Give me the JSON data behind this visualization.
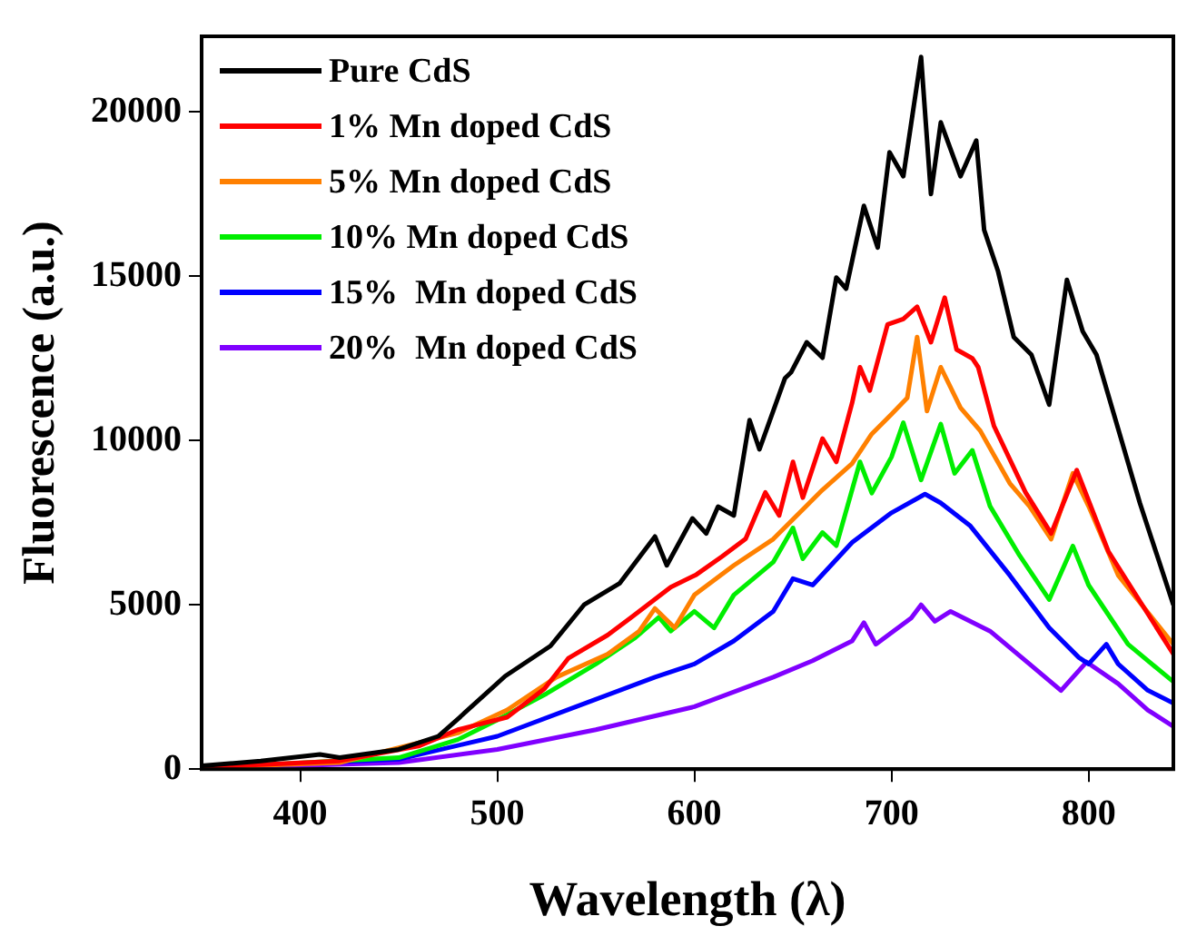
{
  "chart_data": {
    "type": "line",
    "xlabel": "Wavelength (λ)",
    "ylabel": "Fluorescence (a.u.)",
    "xlim": [
      350,
      843
    ],
    "ylim": [
      0,
      22300
    ],
    "xticks": [
      400,
      500,
      600,
      700,
      800
    ],
    "yticks": [
      0,
      5000,
      10000,
      15000,
      20000
    ],
    "grid": false,
    "legend": "top left",
    "marker": "none",
    "line_style": "solid",
    "series": [
      {
        "name": "Pure CdS",
        "color": "#000000",
        "x": [
          350,
          380,
          410,
          420,
          450,
          470,
          481,
          504,
          527,
          544,
          562,
          580,
          586,
          599,
          606,
          612,
          620,
          628,
          633,
          646,
          649,
          657,
          665,
          672,
          677,
          686,
          693,
          699,
          706,
          715,
          720,
          725,
          735,
          743,
          747,
          754,
          762,
          771,
          780,
          789,
          797,
          804,
          826,
          843
        ],
        "values": [
          100,
          250,
          450,
          350,
          600,
          1000,
          1580,
          2830,
          3750,
          5000,
          5650,
          7080,
          6200,
          7630,
          7170,
          7990,
          7720,
          10620,
          9730,
          11900,
          12070,
          12990,
          12520,
          14960,
          14620,
          17140,
          15870,
          18770,
          18040,
          21670,
          17500,
          19680,
          18040,
          19130,
          16410,
          15160,
          13150,
          12610,
          11090,
          14890,
          13320,
          12610,
          8100,
          5000
        ]
      },
      {
        "name": "1% Mn doped CdS",
        "color": "#ff0000",
        "x": [
          350,
          420,
          460,
          480,
          505,
          524,
          536,
          556,
          568,
          588,
          601,
          614,
          626,
          636,
          643,
          650,
          655,
          665,
          672,
          680,
          684,
          689,
          698,
          706,
          713,
          720,
          727,
          733,
          741,
          744,
          752,
          768,
          781,
          794,
          810,
          843
        ],
        "values": [
          50,
          250,
          700,
          1200,
          1580,
          2450,
          3370,
          4080,
          4620,
          5540,
          5920,
          6470,
          7010,
          8420,
          7720,
          9350,
          8260,
          10060,
          9350,
          11140,
          12230,
          11520,
          13530,
          13700,
          14070,
          12990,
          14350,
          12770,
          12500,
          12230,
          10440,
          8420,
          7170,
          9100,
          6630,
          3500
        ]
      },
      {
        "name": "5% Mn doped CdS",
        "color": "#ff8000",
        "x": [
          350,
          420,
          480,
          505,
          530,
          556,
          572,
          580,
          590,
          600,
          620,
          640,
          655,
          665,
          680,
          690,
          700,
          708,
          713,
          718,
          725,
          735,
          745,
          760,
          770,
          781,
          792,
          800,
          815,
          843
        ],
        "values": [
          50,
          200,
          1100,
          1800,
          2800,
          3500,
          4200,
          4890,
          4300,
          5300,
          6200,
          7000,
          7900,
          8500,
          9300,
          10200,
          10800,
          11300,
          13150,
          10900,
          12230,
          11000,
          10300,
          8700,
          8000,
          7000,
          9000,
          8000,
          5900,
          3800
        ]
      },
      {
        "name": "10% Mn doped CdS",
        "color": "#00ee00",
        "x": [
          350,
          450,
          480,
          500,
          525,
          550,
          570,
          582,
          588,
          600,
          610,
          620,
          640,
          650,
          655,
          665,
          672,
          684,
          690,
          700,
          706,
          715,
          725,
          732,
          741,
          750,
          765,
          780,
          792,
          800,
          820,
          843
        ],
        "values": [
          30,
          350,
          900,
          1500,
          2300,
          3200,
          4000,
          4620,
          4200,
          4800,
          4300,
          5300,
          6300,
          7340,
          6400,
          7200,
          6800,
          9350,
          8400,
          9500,
          10540,
          8800,
          10500,
          9000,
          9700,
          8000,
          6500,
          5160,
          6790,
          5600,
          3800,
          2660
        ]
      },
      {
        "name": "15%  Mn doped CdS",
        "color": "#0000ff",
        "x": [
          350,
          450,
          500,
          540,
          580,
          600,
          620,
          640,
          650,
          660,
          680,
          700,
          717,
          725,
          740,
          760,
          780,
          795,
          800,
          809,
          815,
          830,
          843
        ],
        "values": [
          30,
          300,
          1000,
          1900,
          2800,
          3200,
          3900,
          4800,
          5800,
          5600,
          6900,
          7800,
          8370,
          8100,
          7400,
          5900,
          4300,
          3400,
          3200,
          3800,
          3200,
          2400,
          2010
        ]
      },
      {
        "name": "20%  Mn doped CdS",
        "color": "#8000ff",
        "x": [
          350,
          450,
          500,
          550,
          600,
          640,
          660,
          680,
          686,
          692,
          710,
          715,
          722,
          730,
          750,
          770,
          786,
          799,
          815,
          830,
          843
        ],
        "values": [
          20,
          200,
          600,
          1200,
          1900,
          2800,
          3300,
          3900,
          4460,
          3800,
          4600,
          5000,
          4500,
          4800,
          4200,
          3200,
          2390,
          3260,
          2600,
          1800,
          1300
        ]
      }
    ]
  }
}
